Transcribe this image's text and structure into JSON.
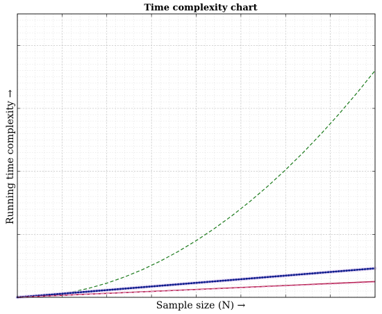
{
  "chart_data": {
    "type": "line",
    "title": "Time complexity chart",
    "xlabel": "Sample size (N) →",
    "ylabel": "Running time complexity →",
    "x": [
      0,
      1,
      2,
      3,
      4,
      5,
      6,
      7,
      8,
      9,
      10,
      11,
      12,
      13,
      14,
      15,
      16,
      17,
      18,
      19,
      20
    ],
    "xlim": [
      0,
      20
    ],
    "ylim": [
      0,
      450
    ],
    "grid": true,
    "series": [
      {
        "color": "#1a7a1a",
        "style": "dashed",
        "values": [
          0,
          0.9,
          3.6,
          8.1,
          14.4,
          22.5,
          32.4,
          44.1,
          57.6,
          72.9,
          90,
          108.9,
          129.6,
          152.1,
          176.4,
          202.5,
          230.4,
          260.1,
          291.6,
          324.9,
          360
        ]
      },
      {
        "color": "#0d1a8c",
        "style": "dotted",
        "values": [
          0,
          2.3,
          4.6,
          6.9,
          9.2,
          11.5,
          13.8,
          16.1,
          18.4,
          20.7,
          23,
          25.3,
          27.6,
          29.9,
          32.2,
          34.5,
          36.8,
          39.1,
          41.4,
          43.7,
          46
        ]
      },
      {
        "color": "#b21a4a",
        "style": "solid",
        "values": [
          0,
          1.25,
          2.5,
          3.75,
          5,
          6.25,
          7.5,
          8.75,
          10,
          11.25,
          12.5,
          13.75,
          15,
          16.25,
          17.5,
          18.75,
          20,
          21.25,
          22.5,
          23.75,
          25
        ]
      },
      {
        "color": "#e8a0c8",
        "style": "dashed",
        "values": [
          0,
          1.2,
          2.4,
          3.6,
          4.8,
          6,
          7.2,
          8.4,
          9.6,
          10.8,
          12,
          13.2,
          14.4,
          15.6,
          16.8,
          18,
          19.2,
          20.4,
          21.6,
          22.8,
          24
        ]
      }
    ]
  }
}
